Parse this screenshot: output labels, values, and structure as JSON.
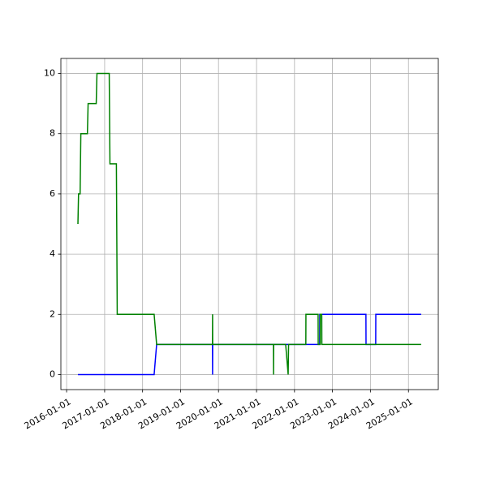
{
  "chart_data": {
    "type": "line",
    "grid": true,
    "xlim": [
      "2015-11-07",
      "2025-10-15"
    ],
    "ylim": [
      -0.5,
      10.5
    ],
    "yticks": [
      0,
      2,
      4,
      6,
      8,
      10
    ],
    "xticks": [
      "2016-01-01",
      "2017-01-01",
      "2018-01-01",
      "2019-01-01",
      "2020-01-01",
      "2021-01-01",
      "2022-01-01",
      "2023-01-01",
      "2024-01-01",
      "2025-01-01"
    ],
    "series": [
      {
        "color": "#0000ff",
        "x": [
          "2016-04-19",
          "2018-04-22",
          "2018-05-16",
          "2019-11-04",
          "2019-11-05",
          "2019-11-06",
          "2022-08-31",
          "2022-09-01",
          "2023-11-19",
          "2023-11-20",
          "2024-02-21",
          "2024-02-22",
          "2025-05-03"
        ],
        "values": [
          0,
          0,
          1,
          1,
          0,
          1,
          1,
          2,
          2,
          1,
          1,
          2,
          2
        ]
      },
      {
        "color": "#008000",
        "x": [
          "2016-04-19",
          "2016-04-25",
          "2016-05-10",
          "2016-05-17",
          "2016-07-19",
          "2016-07-26",
          "2016-10-12",
          "2016-10-19",
          "2017-02-14",
          "2017-02-21",
          "2017-04-24",
          "2017-05-02",
          "2018-04-22",
          "2018-05-16",
          "2019-11-04",
          "2019-11-05",
          "2019-11-06",
          "2021-06-12",
          "2021-06-13",
          "2021-06-14",
          "2021-10-08",
          "2021-11-01",
          "2021-11-05",
          "2022-04-20",
          "2022-04-21",
          "2022-08-16",
          "2022-08-17",
          "2022-09-05",
          "2022-09-06",
          "2022-09-20",
          "2022-09-21",
          "2025-05-03"
        ],
        "values": [
          5,
          6,
          6,
          8,
          8,
          9,
          9,
          10,
          10,
          7,
          7,
          2,
          2,
          1,
          1,
          2,
          1,
          1,
          0,
          1,
          1,
          0,
          1,
          1,
          2,
          2,
          1,
          1,
          2,
          2,
          1,
          1
        ]
      }
    ]
  }
}
